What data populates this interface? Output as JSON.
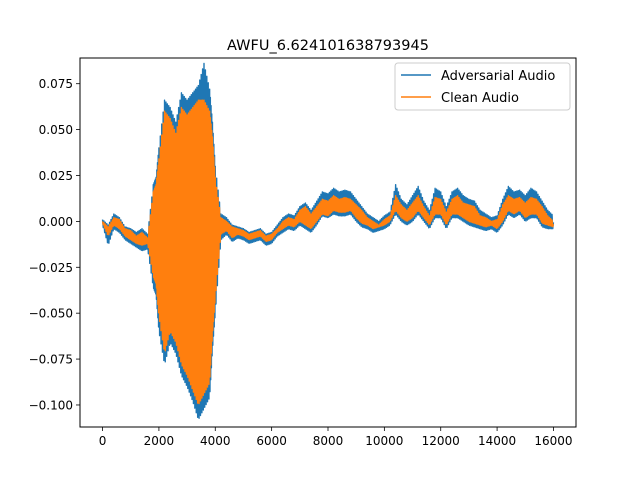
{
  "chart_data": {
    "type": "line",
    "title": "AWFU_6.624101638793945",
    "xlabel": "",
    "ylabel": "",
    "xlim": [
      -800,
      16800
    ],
    "ylim": [
      -0.112,
      0.089
    ],
    "x_ticks": [
      0,
      2000,
      4000,
      6000,
      8000,
      10000,
      12000,
      14000,
      16000
    ],
    "x_tick_labels": [
      "0",
      "2000",
      "4000",
      "6000",
      "8000",
      "10000",
      "12000",
      "14000",
      "16000"
    ],
    "y_ticks": [
      0.075,
      0.05,
      0.025,
      0.0,
      -0.025,
      -0.05,
      -0.075,
      -0.1
    ],
    "y_tick_labels": [
      "0.075",
      "0.050",
      "0.025",
      "0.000",
      "−0.025",
      "−0.050",
      "−0.075",
      "−0.100"
    ],
    "grid": false,
    "legend": {
      "position": "top-right"
    },
    "series": [
      {
        "name": "Adversarial Audio",
        "color": "#1f77b4",
        "x": [
          0,
          200,
          400,
          600,
          800,
          1000,
          1200,
          1400,
          1600,
          1800,
          1900,
          2000,
          2200,
          2400,
          2600,
          2800,
          3000,
          3200,
          3400,
          3600,
          3800,
          3900,
          4000,
          4200,
          4400,
          4600,
          4800,
          5000,
          5200,
          5400,
          5600,
          5800,
          6000,
          6200,
          6400,
          6600,
          6800,
          7000,
          7200,
          7400,
          7600,
          7800,
          8000,
          8200,
          8400,
          8600,
          8800,
          9000,
          9200,
          9400,
          9600,
          9800,
          10000,
          10200,
          10400,
          10600,
          10800,
          11000,
          11200,
          11400,
          11600,
          11800,
          12000,
          12200,
          12400,
          12600,
          12800,
          13000,
          13200,
          13400,
          13600,
          13800,
          14000,
          14200,
          14400,
          14600,
          14800,
          15000,
          15200,
          15400,
          15600,
          15800,
          16000
        ],
        "upper": [
          0.001,
          -0.002,
          0.004,
          0.002,
          -0.003,
          -0.004,
          -0.006,
          -0.004,
          -0.007,
          0.02,
          0.024,
          0.04,
          0.066,
          0.062,
          0.054,
          0.07,
          0.066,
          0.07,
          0.074,
          0.086,
          0.072,
          0.054,
          0.03,
          0.004,
          0.002,
          -0.002,
          -0.003,
          -0.004,
          -0.006,
          -0.005,
          -0.004,
          -0.007,
          -0.006,
          -0.002,
          0.002,
          0.004,
          0.003,
          0.008,
          0.01,
          0.006,
          0.011,
          0.016,
          0.015,
          0.018,
          0.016,
          0.017,
          0.016,
          0.012,
          0.008,
          0.004,
          0.002,
          0.0,
          0.003,
          0.005,
          0.02,
          0.012,
          0.009,
          0.014,
          0.019,
          0.011,
          0.006,
          0.018,
          0.016,
          0.008,
          0.016,
          0.018,
          0.014,
          0.012,
          0.011,
          0.006,
          0.004,
          0.002,
          0.003,
          0.012,
          0.019,
          0.016,
          0.017,
          0.014,
          0.018,
          0.016,
          0.011,
          0.006,
          0.003
        ],
        "lower": [
          -0.002,
          -0.013,
          -0.004,
          -0.006,
          -0.01,
          -0.012,
          -0.014,
          -0.016,
          -0.015,
          -0.036,
          -0.04,
          -0.06,
          -0.078,
          -0.066,
          -0.072,
          -0.084,
          -0.09,
          -0.098,
          -0.108,
          -0.102,
          -0.096,
          -0.07,
          -0.05,
          -0.01,
          -0.007,
          -0.011,
          -0.009,
          -0.01,
          -0.012,
          -0.011,
          -0.01,
          -0.013,
          -0.012,
          -0.008,
          -0.006,
          -0.004,
          -0.005,
          -0.002,
          -0.004,
          -0.006,
          -0.002,
          0.003,
          0.002,
          0.004,
          0.003,
          0.003,
          0.004,
          0.0,
          -0.003,
          -0.004,
          -0.006,
          -0.005,
          -0.004,
          -0.002,
          0.004,
          0.0,
          -0.002,
          0.0,
          0.004,
          0.0,
          -0.004,
          0.002,
          0.002,
          -0.004,
          0.002,
          0.002,
          0.0,
          -0.002,
          -0.003,
          -0.004,
          -0.005,
          -0.004,
          -0.006,
          -0.002,
          0.004,
          0.002,
          0.004,
          0.0,
          0.002,
          0.002,
          -0.003,
          -0.004,
          -0.004
        ]
      },
      {
        "name": "Clean Audio",
        "color": "#ff7f0e",
        "x": [
          0,
          200,
          400,
          600,
          800,
          1000,
          1200,
          1400,
          1600,
          1800,
          1900,
          2000,
          2200,
          2400,
          2600,
          2800,
          3000,
          3200,
          3400,
          3600,
          3800,
          3900,
          4000,
          4200,
          4400,
          4600,
          4800,
          5000,
          5200,
          5400,
          5600,
          5800,
          6000,
          6200,
          6400,
          6600,
          6800,
          7000,
          7200,
          7400,
          7600,
          7800,
          8000,
          8200,
          8400,
          8600,
          8800,
          9000,
          9200,
          9400,
          9600,
          9800,
          10000,
          10200,
          10400,
          10600,
          10800,
          11000,
          11200,
          11400,
          11600,
          11800,
          12000,
          12200,
          12400,
          12600,
          12800,
          13000,
          13200,
          13400,
          13600,
          13800,
          14000,
          14200,
          14400,
          14600,
          14800,
          15000,
          15200,
          15400,
          15600,
          15800,
          16000
        ],
        "upper": [
          0.0,
          -0.003,
          0.002,
          0.001,
          -0.004,
          -0.005,
          -0.008,
          -0.006,
          -0.009,
          0.016,
          0.02,
          0.034,
          0.06,
          0.056,
          0.048,
          0.062,
          0.058,
          0.062,
          0.066,
          0.066,
          0.06,
          0.046,
          0.024,
          0.002,
          0.0,
          -0.003,
          -0.004,
          -0.005,
          -0.007,
          -0.006,
          -0.005,
          -0.008,
          -0.007,
          -0.004,
          0.0,
          0.002,
          0.001,
          0.006,
          0.008,
          0.004,
          0.008,
          0.012,
          0.011,
          0.014,
          0.012,
          0.013,
          0.012,
          0.009,
          0.006,
          0.002,
          0.0,
          -0.002,
          0.001,
          0.003,
          0.014,
          0.009,
          0.006,
          0.01,
          0.014,
          0.008,
          0.003,
          0.013,
          0.012,
          0.005,
          0.012,
          0.014,
          0.01,
          0.009,
          0.008,
          0.003,
          0.002,
          0.0,
          0.001,
          0.009,
          0.014,
          0.012,
          0.013,
          0.01,
          0.013,
          0.012,
          0.008,
          0.003,
          0.0
        ],
        "lower": [
          -0.001,
          -0.008,
          -0.002,
          -0.004,
          -0.008,
          -0.01,
          -0.012,
          -0.013,
          -0.012,
          -0.03,
          -0.034,
          -0.052,
          -0.072,
          -0.06,
          -0.066,
          -0.078,
          -0.084,
          -0.092,
          -0.1,
          -0.094,
          -0.088,
          -0.062,
          -0.042,
          -0.007,
          -0.005,
          -0.009,
          -0.007,
          -0.008,
          -0.01,
          -0.009,
          -0.008,
          -0.011,
          -0.01,
          -0.006,
          -0.004,
          -0.002,
          -0.003,
          0.0,
          -0.002,
          -0.004,
          0.0,
          0.004,
          0.003,
          0.006,
          0.005,
          0.005,
          0.006,
          0.002,
          -0.001,
          -0.002,
          -0.004,
          -0.003,
          -0.002,
          0.0,
          0.006,
          0.002,
          0.0,
          0.002,
          0.006,
          0.002,
          -0.002,
          0.004,
          0.004,
          -0.002,
          0.004,
          0.004,
          0.002,
          0.0,
          -0.001,
          -0.002,
          -0.003,
          -0.002,
          -0.004,
          0.0,
          0.006,
          0.004,
          0.006,
          0.002,
          0.004,
          0.004,
          -0.001,
          -0.002,
          -0.003
        ]
      }
    ]
  }
}
